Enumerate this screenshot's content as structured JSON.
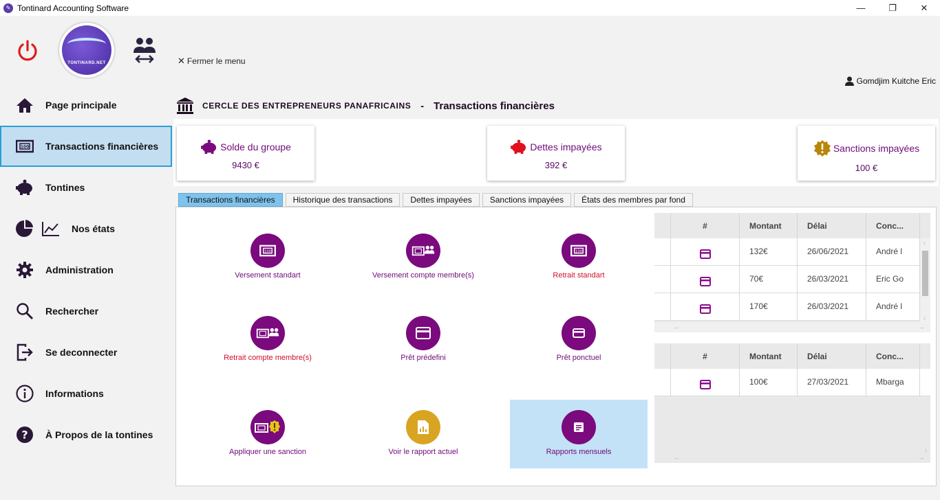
{
  "window": {
    "title": "Tontinard Accounting Software",
    "minimize": "—",
    "maximize": "❐",
    "close": "✕"
  },
  "sidebar": {
    "logo_text": "TONTINARD.NET",
    "items": [
      {
        "label": "Page principale",
        "icon": "home-icon"
      },
      {
        "label": "Transactions financières",
        "icon": "banknote-icon",
        "active": true
      },
      {
        "label": "Tontines",
        "icon": "piggy-bank-icon"
      },
      {
        "label": "Nos états",
        "icon": "pie-chart-icon"
      },
      {
        "label": "Administration",
        "icon": "gear-icon"
      },
      {
        "label": "Rechercher",
        "icon": "search-icon"
      },
      {
        "label": "Se deconnecter",
        "icon": "logout-icon"
      },
      {
        "label": "Informations",
        "icon": "info-icon"
      },
      {
        "label": "À Propos de la  tontines",
        "icon": "help-icon"
      }
    ]
  },
  "header": {
    "close_menu": "Fermer le menu",
    "user": "Gomdjim Kuitche Eric",
    "org": "CERCLE DES ENTREPRENEURS PANAFRICAINS",
    "separator": "-",
    "section": "Transactions financières"
  },
  "cards": [
    {
      "title": "Solde du groupe",
      "value": "9430 €",
      "icon": "piggy-bank-icon",
      "color": "#7a0a7e"
    },
    {
      "title": "Dettes impayées",
      "value": "392 €",
      "icon": "piggy-bank-red-icon",
      "color": "#e0101e"
    },
    {
      "title": "Sanctions impayées",
      "value": "100 €",
      "icon": "warning-badge-icon",
      "color": "#b8860b"
    }
  ],
  "tabs": [
    {
      "label": "Transactions financières",
      "active": true
    },
    {
      "label": "Historique des transactions"
    },
    {
      "label": "Dettes impayées"
    },
    {
      "label": "Sanctions impayées"
    },
    {
      "label": "États des membres par fond"
    }
  ],
  "actions": [
    {
      "label": "Versement standart",
      "icon": "banknote-icon"
    },
    {
      "label": "Versement compte membre(s)",
      "icon": "banknote-members-icon"
    },
    {
      "label": "Retrait standart",
      "icon": "banknote-icon",
      "red": true
    },
    {
      "label": "Retrait compte membre(s)",
      "icon": "banknote-members-icon",
      "red": true
    },
    {
      "label": "Prêt prédefini",
      "icon": "card-icon"
    },
    {
      "label": "Prêt ponctuel",
      "icon": "card-small-icon"
    },
    {
      "label": "Appliquer une sanction",
      "icon": "banknote-warning-icon"
    },
    {
      "label": "Voir le rapport actuel",
      "icon": "report-icon",
      "gold": true
    },
    {
      "label": "Rapports mensuels",
      "icon": "document-icon",
      "selected": true
    }
  ],
  "grid1": {
    "headers": [
      "#",
      "Montant",
      "Délai",
      "Conc..."
    ],
    "rows": [
      {
        "montant": "132€",
        "delai": "26/06/2021",
        "conc": "André l"
      },
      {
        "montant": "70€",
        "delai": "26/03/2021",
        "conc": "Eric Go"
      },
      {
        "montant": "170€",
        "delai": "26/03/2021",
        "conc": "André l"
      }
    ]
  },
  "grid2": {
    "headers": [
      "#",
      "Montant",
      "Délai",
      "Conc..."
    ],
    "rows": [
      {
        "montant": "100€",
        "delai": "27/03/2021",
        "conc": "Mbarga"
      }
    ]
  }
}
